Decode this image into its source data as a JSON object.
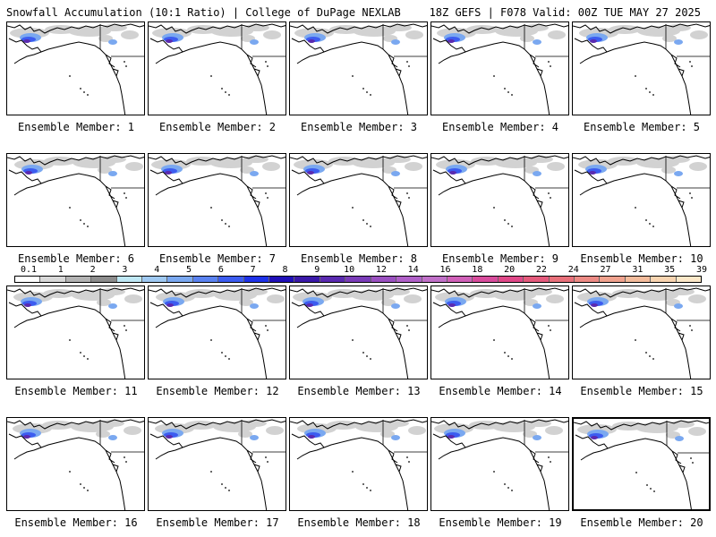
{
  "header": {
    "left_title": "Snowfall Accumulation (10:1 Ratio) | College of DuPage NEXLAB",
    "right_title": "18Z GEFS | F078 Valid: 00Z TUE MAY 27 2025"
  },
  "members": [
    {
      "label": "Ensemble Member: 1"
    },
    {
      "label": "Ensemble Member: 2"
    },
    {
      "label": "Ensemble Member: 3"
    },
    {
      "label": "Ensemble Member: 4"
    },
    {
      "label": "Ensemble Member: 5"
    },
    {
      "label": "Ensemble Member: 6"
    },
    {
      "label": "Ensemble Member: 7"
    },
    {
      "label": "Ensemble Member: 8"
    },
    {
      "label": "Ensemble Member: 9"
    },
    {
      "label": "Ensemble Member: 10"
    },
    {
      "label": "Ensemble Member: 11"
    },
    {
      "label": "Ensemble Member: 12"
    },
    {
      "label": "Ensemble Member: 13"
    },
    {
      "label": "Ensemble Member: 14"
    },
    {
      "label": "Ensemble Member: 15"
    },
    {
      "label": "Ensemble Member: 16"
    },
    {
      "label": "Ensemble Member: 17"
    },
    {
      "label": "Ensemble Member: 18"
    },
    {
      "label": "Ensemble Member: 19"
    },
    {
      "label": "Ensemble Member: 20"
    }
  ],
  "colorbar": {
    "ticks": [
      "0.1",
      "1",
      "2",
      "3",
      "4",
      "5",
      "6",
      "7",
      "8",
      "9",
      "10",
      "12",
      "14",
      "16",
      "18",
      "20",
      "22",
      "24",
      "27",
      "31",
      "35",
      "39"
    ],
    "colors": [
      "#ffffff",
      "#d9d9d9",
      "#b3b3b3",
      "#8c8c8c",
      "#bfe8f5",
      "#9fc9f2",
      "#7aa8f0",
      "#5a82f0",
      "#3c5cf0",
      "#1e32e8",
      "#2010b8",
      "#3a18a8",
      "#5a2ab0",
      "#7a3cb8",
      "#9a50c0",
      "#b060c8",
      "#c070c8",
      "#d060b8",
      "#d84c9c",
      "#e04888",
      "#e45a7c",
      "#e8707a",
      "#ec8a84",
      "#f0a28e",
      "#f4bc9c",
      "#f8d4b0",
      "#fce8c8"
    ]
  }
}
